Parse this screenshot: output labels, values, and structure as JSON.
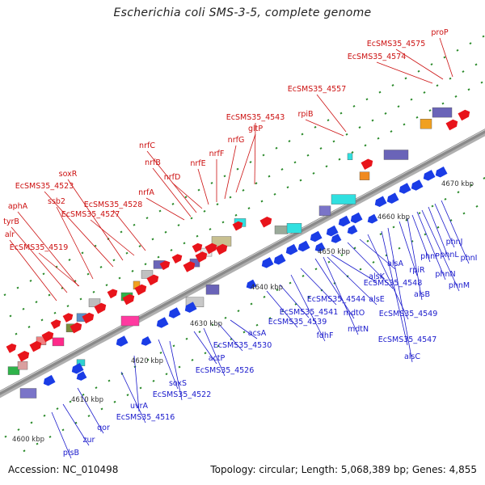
{
  "title": "Escherichia coli SMS-3-5, complete genome",
  "footer": {
    "accession": "Accession: NC_010498",
    "summary": "Topology: circular; Length: 5,068,389 bp; Genes: 4,855"
  },
  "colors": {
    "forward_gene": "#e8141b",
    "reverse_gene": "#1a3ce6",
    "forward_label": "#cc1111",
    "reverse_label": "#1a1acc",
    "backbone": "#8a8a8a",
    "tick": "#2a8a2a"
  },
  "scale_labels": [
    "4600 kbp",
    "4610 kbp",
    "4620 kbp",
    "4630 kbp",
    "4640 kbp",
    "4650 kbp",
    "4660 kbp",
    "4670 kbp"
  ],
  "forward_gene_labels": [
    "alr",
    "tyrB",
    "aphA",
    "ssb2",
    "EcSMS35_4519",
    "EcSMS35_4523",
    "soxR",
    "EcSMS35_4527",
    "EcSMS35_4528",
    "nrfA",
    "nrfB",
    "nrfC",
    "nrfD",
    "nrfE",
    "nrfF",
    "nrfG",
    "gltP",
    "EcSMS35_4543",
    "rpiB",
    "EcSMS35_4557",
    "EcSMS35_4574",
    "EcSMS35_4575",
    "proP"
  ],
  "reverse_gene_labels": [
    "plsB",
    "zur",
    "qor",
    "EcSMS35_4516",
    "uvrA",
    "soxS",
    "EcSMS35_4522",
    "actP",
    "EcSMS35_4526",
    "EcSMS35_4530",
    "acsA",
    "EcSMS35_4539",
    "EcSMS35_4541",
    "fdhF",
    "EcSMS35_4544",
    "mdtO",
    "mdtN",
    "alsE",
    "alsK",
    "EcSMS35_4548",
    "alsA",
    "EcSMS35_4549",
    "EcSMS35_4547",
    "alsC",
    "rpiR",
    "alsB",
    "phnP",
    "phnN",
    "phnM",
    "phnL",
    "phnJ",
    "phnI"
  ]
}
